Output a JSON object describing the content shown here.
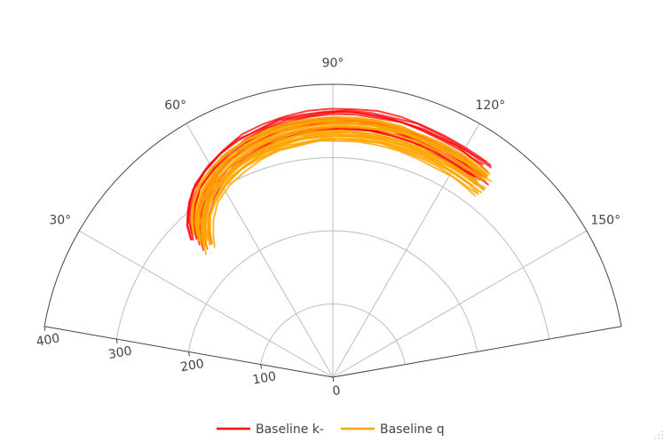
{
  "chart_data": {
    "type": "line",
    "subtype": "polar",
    "sector_degrees": [
      10,
      170
    ],
    "angular_ticks": [
      "30°",
      "60°",
      "90°",
      "120°",
      "150°"
    ],
    "angular_tick_values": [
      30,
      60,
      90,
      120,
      150
    ],
    "radial_ticks": [
      "0",
      "100",
      "200",
      "300",
      "400"
    ],
    "radial_tick_values": [
      0,
      100,
      200,
      300,
      400
    ],
    "radial_range": [
      0,
      400
    ],
    "grid": true,
    "legend_position": "bottom-center",
    "series_groups": [
      {
        "name": "Baseline k-",
        "color": "#ff0000",
        "line_count": 14,
        "theta": [
          46,
          48,
          51,
          55,
          60,
          65,
          70,
          75,
          80,
          85,
          90,
          95,
          100,
          105,
          110,
          115,
          120,
          124,
          127
        ],
        "r_mean": [
          260,
          276,
          292,
          308,
          320,
          330,
          337,
          342,
          346,
          348,
          350,
          351,
          351,
          350,
          349,
          347,
          345,
          344,
          343
        ]
      },
      {
        "name": "Baseline q",
        "color": "#ffa500",
        "line_count": 24,
        "theta": [
          46,
          48,
          51,
          55,
          60,
          65,
          70,
          75,
          80,
          85,
          90,
          95,
          100,
          105,
          110,
          115,
          120,
          124,
          127
        ],
        "r_mean": [
          258,
          272,
          288,
          303,
          315,
          324,
          330,
          334,
          337,
          339,
          340,
          341,
          341,
          340,
          339,
          338,
          337,
          336,
          336
        ]
      }
    ]
  },
  "legend": {
    "items": [
      {
        "label": "Baseline k-",
        "color": "#ff0000"
      },
      {
        "label": "Baseline q",
        "color": "#ffa500"
      }
    ]
  },
  "toolbar": {
    "resize_handle_icon": "resize-grip-icon"
  }
}
